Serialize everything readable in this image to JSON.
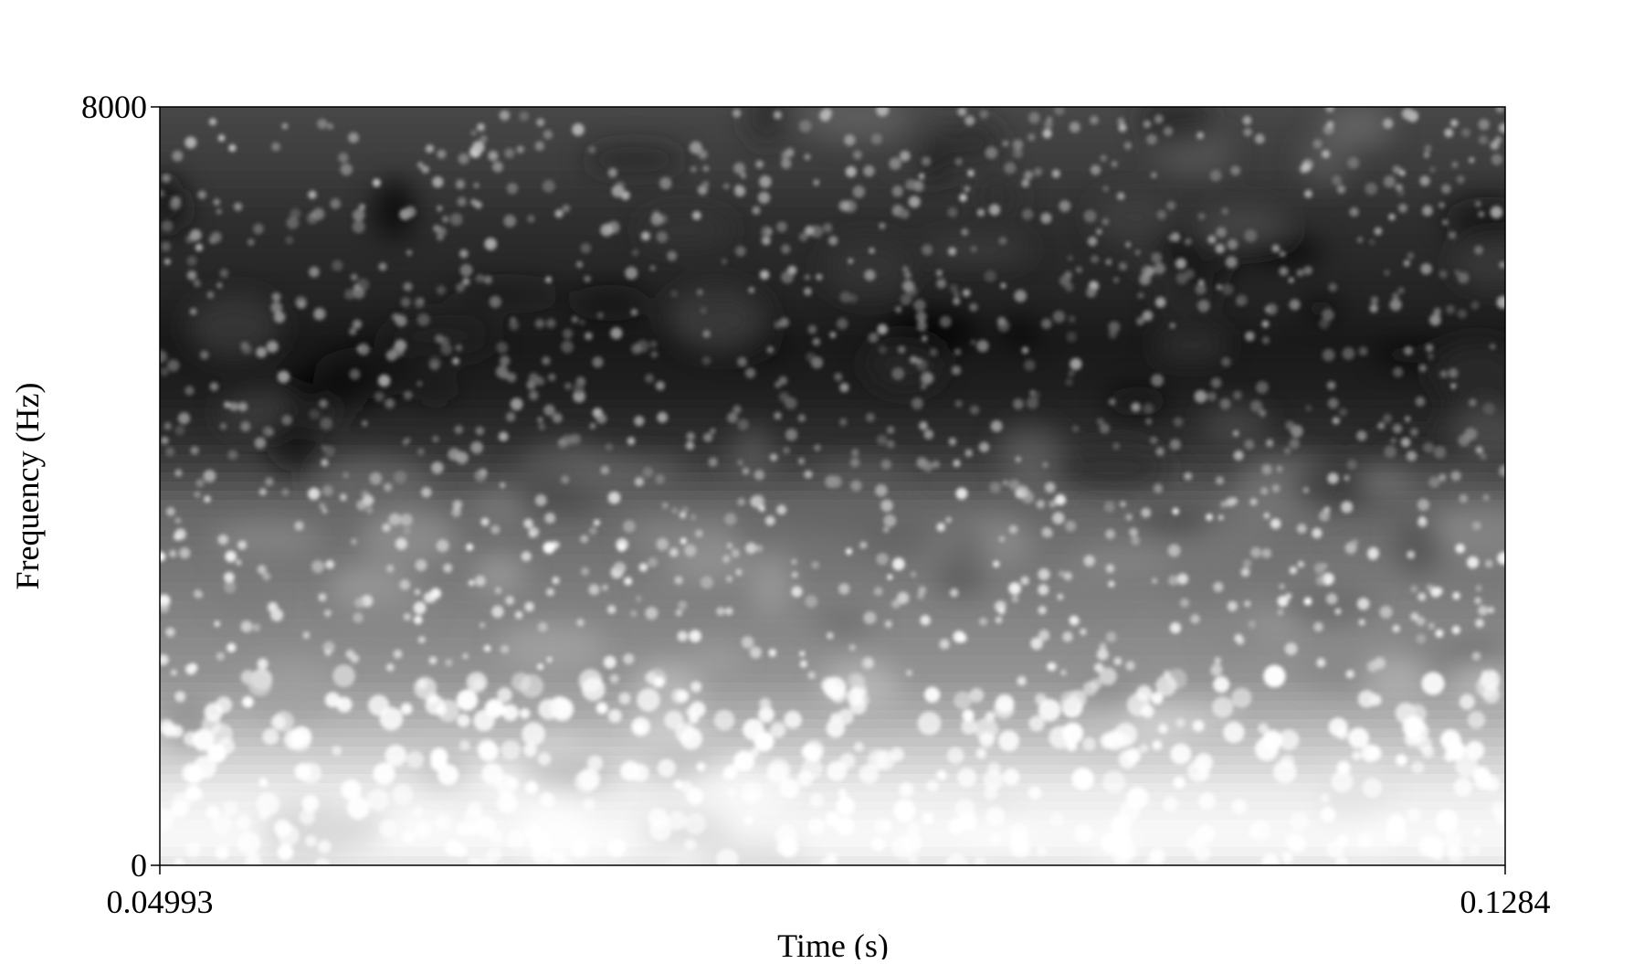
{
  "chart_data": {
    "type": "heatmap",
    "title": "",
    "xlabel": "Time (s)",
    "ylabel": "Frequency (Hz)",
    "xlim": [
      0.04993,
      0.1284
    ],
    "ylim": [
      0,
      8000
    ],
    "x_tick_labels": [
      "0.04993",
      "0.1284"
    ],
    "y_tick_labels": [
      "0",
      "8000"
    ],
    "colormap": "grayscale: white = high energy, black = low energy",
    "grid": false,
    "legend": "none",
    "energy_profile": {
      "frequency_hz": [
        0,
        200,
        400,
        800,
        1200,
        1600,
        2000,
        2600,
        3200,
        3800,
        4200,
        4500,
        5000,
        5500,
        6000,
        6800,
        7400,
        8000
      ],
      "relative_intensity": [
        0.9,
        0.97,
        0.97,
        0.92,
        0.8,
        0.68,
        0.58,
        0.52,
        0.46,
        0.4,
        0.26,
        0.18,
        0.12,
        0.1,
        0.14,
        0.18,
        0.24,
        0.28
      ]
    },
    "colors": {
      "high": "#ffffff",
      "low": "#000000",
      "axis": "#000000"
    }
  }
}
